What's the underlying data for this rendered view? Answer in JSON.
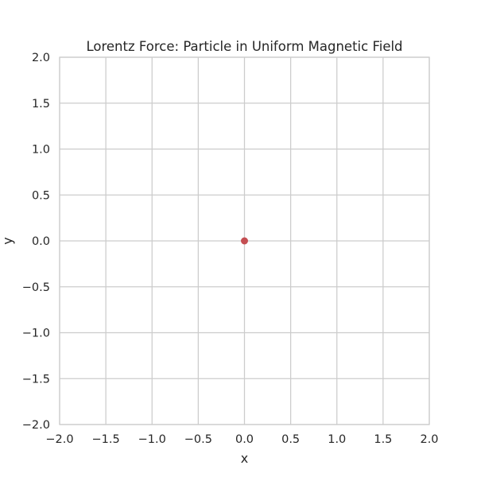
{
  "chart_data": {
    "type": "scatter",
    "title": "Lorentz Force: Particle in Uniform Magnetic Field",
    "xlabel": "x",
    "ylabel": "y",
    "xlim": [
      -2.0,
      2.0
    ],
    "ylim": [
      -2.0,
      2.0
    ],
    "x_ticks": [
      "−2.0",
      "−1.5",
      "−1.0",
      "−0.5",
      "0.0",
      "0.5",
      "1.0",
      "1.5",
      "2.0"
    ],
    "y_ticks": [
      "−2.0",
      "−1.5",
      "−1.0",
      "−0.5",
      "0.0",
      "0.5",
      "1.0",
      "1.5",
      "2.0"
    ],
    "grid": true,
    "series": [
      {
        "points": [
          {
            "x": 0.0,
            "y": 0.0
          }
        ],
        "color": "#c44e52"
      }
    ],
    "colors": {
      "background": "#ffffff",
      "grid": "#cccccc",
      "spine": "#cccccc",
      "text": "#262626"
    }
  }
}
